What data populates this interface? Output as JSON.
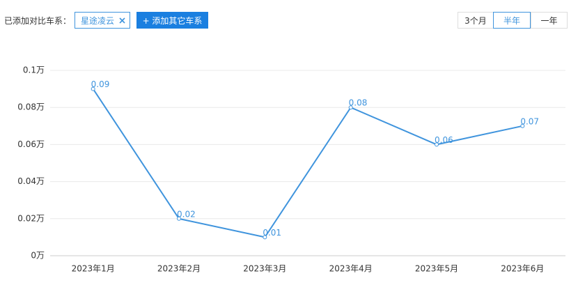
{
  "toolbar": {
    "label": "已添加对比车系：",
    "tags": [
      "星途凌云"
    ],
    "add_button": "+ 添加其它车系",
    "periods": [
      "3个月",
      "半年",
      "一年"
    ],
    "selected_period": 1
  },
  "chart_data": {
    "type": "line",
    "categories": [
      "2023年1月",
      "2023年2月",
      "2023年3月",
      "2023年4月",
      "2023年5月",
      "2023年6月"
    ],
    "series": [
      {
        "name": "星途凌云",
        "color": "#3f94dd",
        "values": [
          0.09,
          0.02,
          0.01,
          0.08,
          0.06,
          0.07
        ]
      }
    ],
    "ylim": [
      0,
      0.1
    ],
    "yticks": [
      {
        "value": 0,
        "label": "0万"
      },
      {
        "value": 0.02,
        "label": "0.02万"
      },
      {
        "value": 0.04,
        "label": "0.04万"
      },
      {
        "value": 0.06,
        "label": "0.06万"
      },
      {
        "value": 0.08,
        "label": "0.08万"
      },
      {
        "value": 0.1,
        "label": "0.1万"
      }
    ],
    "grid": true
  }
}
